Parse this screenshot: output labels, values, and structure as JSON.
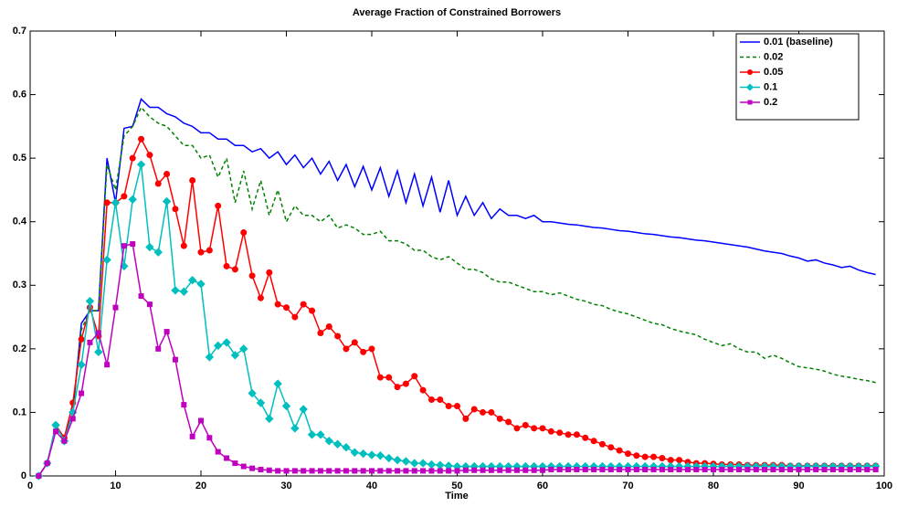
{
  "chart_data": {
    "type": "line",
    "title": "Average Fraction of Constrained Borrowers",
    "xlabel": "Time",
    "xlim": [
      0,
      100
    ],
    "xticks": [
      0,
      10,
      20,
      30,
      40,
      50,
      60,
      70,
      80,
      90,
      100
    ],
    "ylim": [
      0,
      0.7
    ],
    "yticks": [
      0,
      0.1,
      0.2,
      0.3,
      0.4,
      0.5,
      0.6,
      0.7
    ],
    "legend": "upper right",
    "x": [
      1,
      2,
      3,
      4,
      5,
      6,
      7,
      8,
      9,
      10,
      11,
      12,
      13,
      14,
      15,
      16,
      17,
      18,
      19,
      20,
      21,
      22,
      23,
      24,
      25,
      26,
      27,
      28,
      29,
      30,
      31,
      32,
      33,
      34,
      35,
      36,
      37,
      38,
      39,
      40,
      41,
      42,
      43,
      44,
      45,
      46,
      47,
      48,
      49,
      50,
      51,
      52,
      53,
      54,
      55,
      56,
      57,
      58,
      59,
      60,
      61,
      62,
      63,
      64,
      65,
      66,
      67,
      68,
      69,
      70,
      71,
      72,
      73,
      74,
      75,
      76,
      77,
      78,
      79,
      80,
      81,
      82,
      83,
      84,
      85,
      86,
      87,
      88,
      89,
      90,
      91,
      92,
      93,
      94,
      95,
      96,
      97,
      98,
      99
    ],
    "series": [
      {
        "name": "0.01 (baseline)",
        "color": "#0000ff",
        "dash": false,
        "marker": "none",
        "values": [
          0,
          0.02,
          0.075,
          0.06,
          0.1,
          0.24,
          0.26,
          0.26,
          0.5,
          0.43,
          0.547,
          0.55,
          0.593,
          0.58,
          0.58,
          0.57,
          0.565,
          0.555,
          0.55,
          0.54,
          0.54,
          0.53,
          0.53,
          0.52,
          0.52,
          0.51,
          0.515,
          0.5,
          0.51,
          0.49,
          0.505,
          0.485,
          0.5,
          0.475,
          0.495,
          0.465,
          0.49,
          0.455,
          0.487,
          0.45,
          0.485,
          0.44,
          0.48,
          0.43,
          0.475,
          0.425,
          0.47,
          0.415,
          0.465,
          0.41,
          0.44,
          0.41,
          0.43,
          0.405,
          0.42,
          0.41,
          0.41,
          0.405,
          0.41,
          0.4,
          0.4,
          0.398,
          0.396,
          0.395,
          0.393,
          0.391,
          0.39,
          0.388,
          0.386,
          0.385,
          0.383,
          0.381,
          0.38,
          0.378,
          0.376,
          0.375,
          0.373,
          0.371,
          0.37,
          0.368,
          0.366,
          0.364,
          0.362,
          0.36,
          0.357,
          0.354,
          0.352,
          0.35,
          0.346,
          0.343,
          0.338,
          0.34,
          0.335,
          0.332,
          0.328,
          0.33,
          0.324,
          0.32,
          0.317
        ]
      },
      {
        "name": "0.02",
        "color": "#008000",
        "dash": true,
        "marker": "none",
        "values": [
          0,
          0.02,
          0.075,
          0.06,
          0.1,
          0.23,
          0.26,
          0.26,
          0.49,
          0.45,
          0.535,
          0.55,
          0.58,
          0.565,
          0.555,
          0.55,
          0.535,
          0.52,
          0.52,
          0.5,
          0.505,
          0.47,
          0.5,
          0.43,
          0.48,
          0.42,
          0.465,
          0.41,
          0.45,
          0.4,
          0.425,
          0.41,
          0.41,
          0.4,
          0.41,
          0.39,
          0.395,
          0.39,
          0.38,
          0.38,
          0.385,
          0.37,
          0.37,
          0.365,
          0.355,
          0.355,
          0.345,
          0.34,
          0.345,
          0.335,
          0.325,
          0.325,
          0.32,
          0.31,
          0.305,
          0.305,
          0.3,
          0.295,
          0.29,
          0.29,
          0.285,
          0.288,
          0.283,
          0.278,
          0.275,
          0.27,
          0.268,
          0.262,
          0.258,
          0.255,
          0.25,
          0.245,
          0.24,
          0.238,
          0.232,
          0.228,
          0.225,
          0.222,
          0.215,
          0.21,
          0.205,
          0.208,
          0.2,
          0.195,
          0.195,
          0.185,
          0.19,
          0.185,
          0.178,
          0.172,
          0.17,
          0.168,
          0.165,
          0.16,
          0.157,
          0.155,
          0.152,
          0.15,
          0.147
        ]
      },
      {
        "name": "0.05",
        "color": "#ff0000",
        "dash": false,
        "marker": "circle",
        "values": [
          0,
          0.02,
          0.08,
          0.06,
          0.115,
          0.215,
          0.265,
          0.22,
          0.43,
          0.43,
          0.44,
          0.5,
          0.53,
          0.505,
          0.46,
          0.475,
          0.42,
          0.362,
          0.465,
          0.352,
          0.355,
          0.425,
          0.33,
          0.325,
          0.383,
          0.315,
          0.28,
          0.32,
          0.27,
          0.265,
          0.25,
          0.27,
          0.26,
          0.225,
          0.235,
          0.22,
          0.2,
          0.21,
          0.195,
          0.2,
          0.155,
          0.155,
          0.14,
          0.145,
          0.157,
          0.135,
          0.12,
          0.12,
          0.11,
          0.11,
          0.09,
          0.105,
          0.1,
          0.1,
          0.09,
          0.085,
          0.075,
          0.08,
          0.075,
          0.075,
          0.07,
          0.068,
          0.065,
          0.065,
          0.06,
          0.055,
          0.05,
          0.045,
          0.04,
          0.035,
          0.032,
          0.03,
          0.03,
          0.028,
          0.025,
          0.025,
          0.022,
          0.02,
          0.02,
          0.019,
          0.018,
          0.018,
          0.018,
          0.017,
          0.017,
          0.017,
          0.017,
          0.017,
          0.016,
          0.016,
          0.016,
          0.016,
          0.016,
          0.016,
          0.016,
          0.016,
          0.016,
          0.016,
          0.016
        ]
      },
      {
        "name": "0.1",
        "color": "#00bfbf",
        "dash": false,
        "marker": "diamond",
        "values": [
          0,
          0.02,
          0.08,
          0.055,
          0.1,
          0.175,
          0.275,
          0.195,
          0.34,
          0.43,
          0.33,
          0.435,
          0.49,
          0.36,
          0.352,
          0.432,
          0.292,
          0.29,
          0.308,
          0.302,
          0.187,
          0.205,
          0.21,
          0.19,
          0.2,
          0.13,
          0.115,
          0.09,
          0.145,
          0.11,
          0.075,
          0.105,
          0.065,
          0.065,
          0.055,
          0.05,
          0.045,
          0.037,
          0.035,
          0.033,
          0.032,
          0.028,
          0.025,
          0.023,
          0.02,
          0.02,
          0.018,
          0.017,
          0.016,
          0.015,
          0.015,
          0.015,
          0.015,
          0.015,
          0.015,
          0.015,
          0.015,
          0.015,
          0.015,
          0.015,
          0.015,
          0.015,
          0.015,
          0.015,
          0.015,
          0.015,
          0.015,
          0.015,
          0.015,
          0.015,
          0.015,
          0.015,
          0.015,
          0.015,
          0.015,
          0.015,
          0.015,
          0.015,
          0.015,
          0.015,
          0.015,
          0.015,
          0.015,
          0.015,
          0.015,
          0.015,
          0.015,
          0.015,
          0.015,
          0.015,
          0.015,
          0.015,
          0.015,
          0.015,
          0.015,
          0.015,
          0.015,
          0.015,
          0.015
        ]
      },
      {
        "name": "0.2",
        "color": "#bf00bf",
        "dash": false,
        "marker": "square",
        "values": [
          0,
          0.02,
          0.07,
          0.055,
          0.09,
          0.13,
          0.21,
          0.225,
          0.175,
          0.265,
          0.362,
          0.365,
          0.283,
          0.27,
          0.2,
          0.227,
          0.183,
          0.112,
          0.062,
          0.087,
          0.06,
          0.038,
          0.028,
          0.02,
          0.015,
          0.012,
          0.01,
          0.009,
          0.008,
          0.008,
          0.008,
          0.008,
          0.008,
          0.008,
          0.008,
          0.008,
          0.008,
          0.008,
          0.008,
          0.008,
          0.008,
          0.008,
          0.008,
          0.008,
          0.008,
          0.008,
          0.008,
          0.008,
          0.008,
          0.008,
          0.009,
          0.009,
          0.009,
          0.009,
          0.009,
          0.009,
          0.009,
          0.009,
          0.009,
          0.009,
          0.01,
          0.01,
          0.01,
          0.01,
          0.01,
          0.01,
          0.01,
          0.01,
          0.01,
          0.01,
          0.01,
          0.01,
          0.01,
          0.01,
          0.01,
          0.01,
          0.01,
          0.01,
          0.01,
          0.01,
          0.01,
          0.01,
          0.01,
          0.01,
          0.01,
          0.01,
          0.01,
          0.01,
          0.01,
          0.01,
          0.01,
          0.01,
          0.01,
          0.01,
          0.01,
          0.01,
          0.01,
          0.01,
          0.01
        ]
      }
    ]
  }
}
